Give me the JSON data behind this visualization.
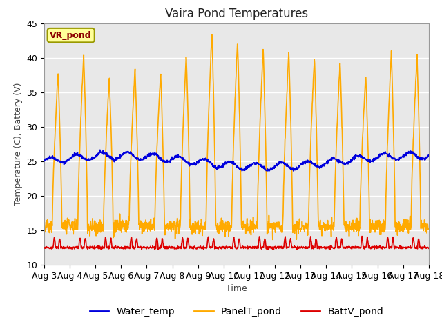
{
  "title": "Vaira Pond Temperatures",
  "xlabel": "Time",
  "ylabel": "Temperature (C), Battery (V)",
  "annotation": "VR_pond",
  "ylim": [
    10,
    45
  ],
  "yticks": [
    10,
    15,
    20,
    25,
    30,
    35,
    40,
    45
  ],
  "num_days": 15,
  "x_tick_labels": [
    "Aug 3",
    "Aug 4",
    "Aug 5",
    "Aug 6",
    "Aug 7",
    "Aug 8",
    "Aug 9",
    "Aug 10",
    "Aug 11",
    "Aug 12",
    "Aug 13",
    "Aug 14",
    "Aug 15",
    "Aug 16",
    "Aug 17",
    "Aug 18"
  ],
  "water_color": "#0000dd",
  "panel_color": "#ffaa00",
  "batt_color": "#dd0000",
  "bg_color": "#e8e8e8",
  "legend_labels": [
    "Water_temp",
    "PanelT_pond",
    "BattV_pond"
  ],
  "title_fontsize": 12,
  "axis_fontsize": 9,
  "tick_fontsize": 9,
  "legend_fontsize": 10,
  "panel_night": 15.5,
  "panel_peaks": [
    38,
    40.5,
    37,
    38.5,
    38,
    40.5,
    44,
    42.5,
    41.5,
    41,
    40,
    39.5,
    37.5,
    41,
    40.5
  ]
}
